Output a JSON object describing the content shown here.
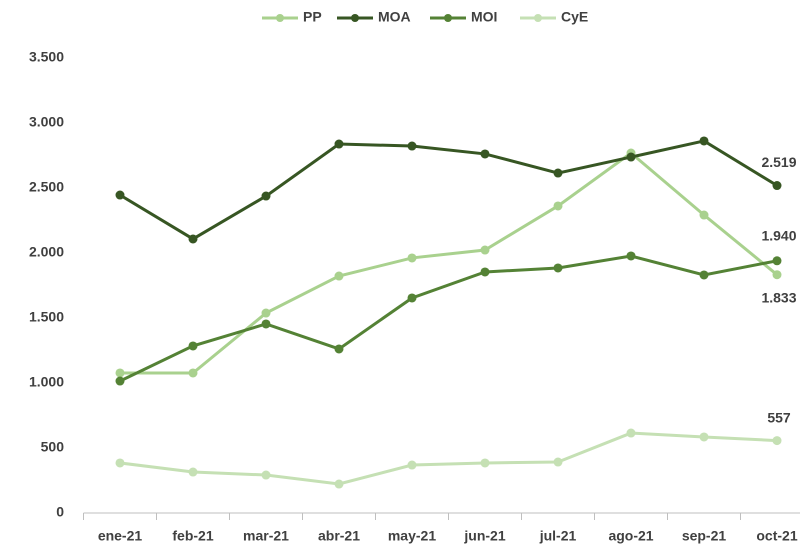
{
  "chart_data": {
    "type": "line",
    "categories": [
      "ene-21",
      "feb-21",
      "mar-21",
      "abr-21",
      "may-21",
      "jun-21",
      "jul-21",
      "ago-21",
      "sep-21",
      "oct-21"
    ],
    "series": [
      {
        "name": "PP",
        "color": "#a9d18e",
        "values": [
          1077,
          1077,
          1538,
          1823,
          1962,
          2023,
          2362,
          2769,
          2292,
          1833
        ],
        "value_labels": [
          null,
          null,
          null,
          null,
          null,
          null,
          null,
          null,
          null,
          "1.833"
        ]
      },
      {
        "name": "MOA",
        "color": "#375623",
        "values": [
          2446,
          2108,
          2438,
          2838,
          2823,
          2762,
          2615,
          2738,
          2862,
          2519
        ],
        "value_labels": [
          null,
          null,
          null,
          null,
          null,
          null,
          null,
          null,
          null,
          "2.519"
        ]
      },
      {
        "name": "MOI",
        "color": "#548235",
        "values": [
          1015,
          1285,
          1454,
          1262,
          1654,
          1854,
          1885,
          1977,
          1831,
          1940
        ],
        "value_labels": [
          null,
          null,
          null,
          null,
          null,
          null,
          null,
          null,
          null,
          "1.940"
        ]
      },
      {
        "name": "CyE",
        "color": "#c5e0b4",
        "values": [
          385,
          315,
          292,
          223,
          369,
          385,
          392,
          615,
          585,
          557
        ],
        "value_labels": [
          null,
          null,
          null,
          null,
          null,
          null,
          null,
          null,
          null,
          557
        ]
      }
    ],
    "ylim": [
      0,
      3500
    ],
    "yticks": [
      0,
      500,
      {
        "value": 1000,
        "label": "1.000"
      },
      {
        "value": 1500,
        "label": "1.500"
      },
      {
        "value": 2000,
        "label": "2.000"
      },
      {
        "value": 2500,
        "label": "2.500"
      },
      {
        "value": 3000,
        "label": "3.000"
      },
      {
        "value": 3500,
        "label": "3.500"
      }
    ],
    "grid": false,
    "legend": "top"
  }
}
